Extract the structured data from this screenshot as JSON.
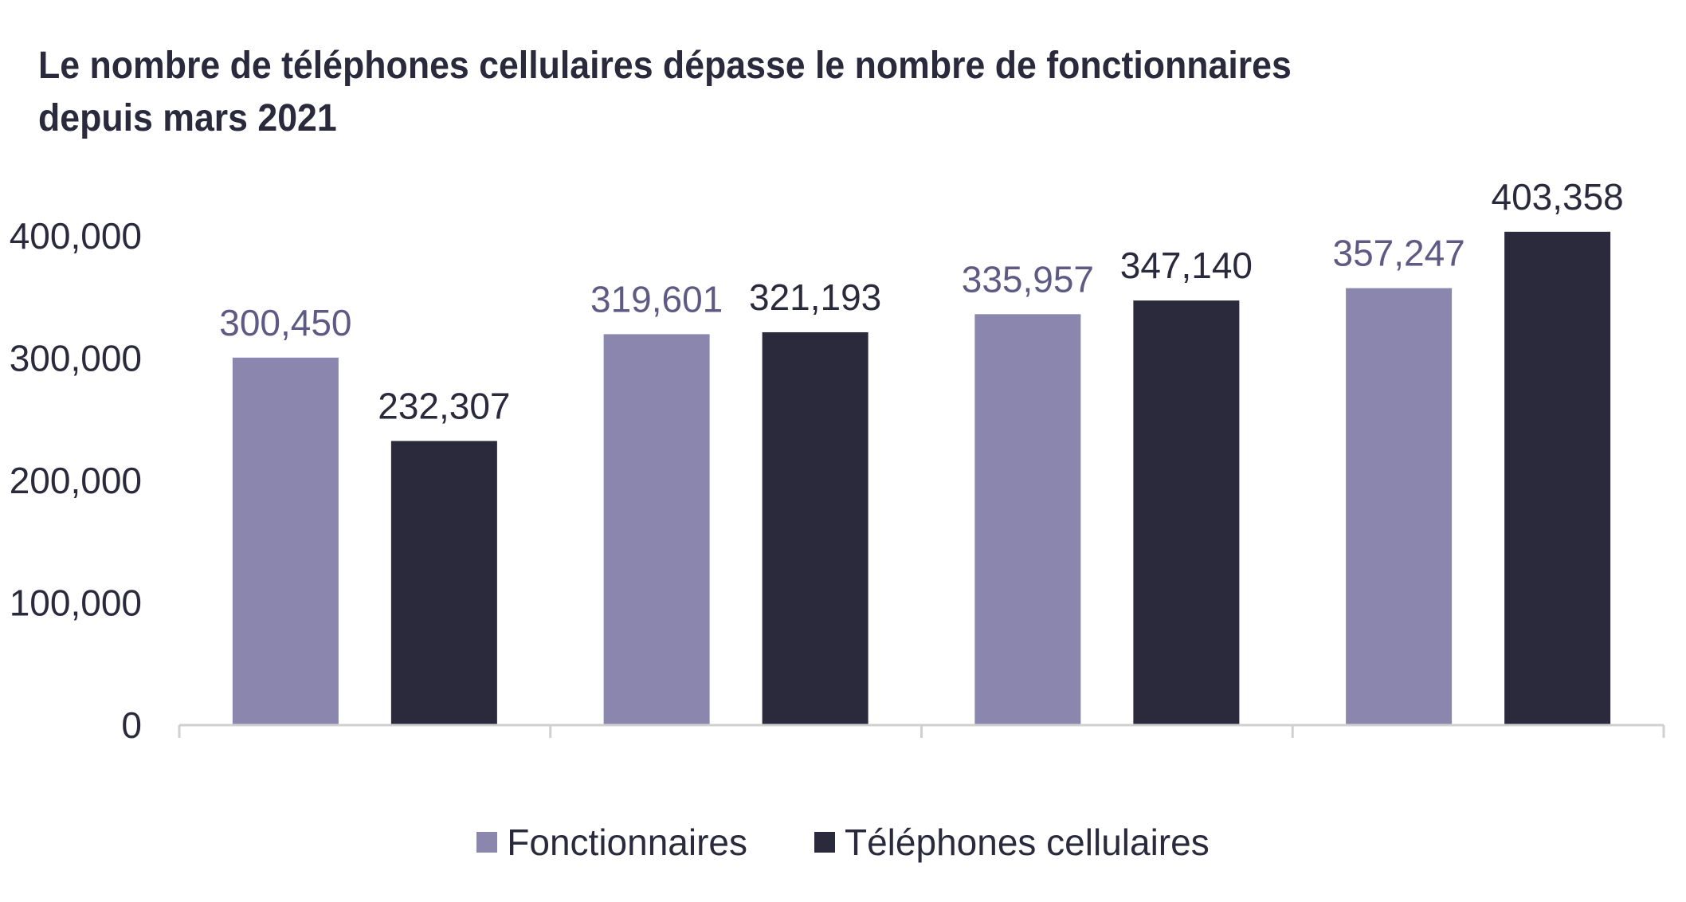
{
  "chart_data": {
    "type": "bar",
    "title": "Le nombre de téléphones cellulaires dépasse le nombre de fonctionnaires depuis mars 2021",
    "categories": [
      "",
      "",
      "",
      ""
    ],
    "series": [
      {
        "name": "Fonctionnaires",
        "color": "#8a86ae",
        "label_color": "#5e5a84",
        "values": [
          300450,
          319601,
          335957,
          357247
        ],
        "value_labels": [
          "300,450",
          "319,601",
          "335,957",
          "357,247"
        ]
      },
      {
        "name": "Téléphones cellulaires",
        "color": "#2b2a3d",
        "label_color": "#2a2a3c",
        "values": [
          232307,
          321193,
          347140,
          403358
        ],
        "value_labels": [
          "232,307",
          "321,193",
          "347,140",
          "403,358"
        ]
      }
    ],
    "ylim": [
      0,
      400000
    ],
    "yticks": [
      0,
      100000,
      200000,
      300000,
      400000
    ],
    "ytick_labels": [
      "0",
      "100,000",
      "200,000",
      "300,000",
      "400,000"
    ],
    "xlabel": "",
    "ylabel": "",
    "grid": false,
    "legend_position": "bottom-center",
    "axis_color": "#d0d0d0"
  }
}
